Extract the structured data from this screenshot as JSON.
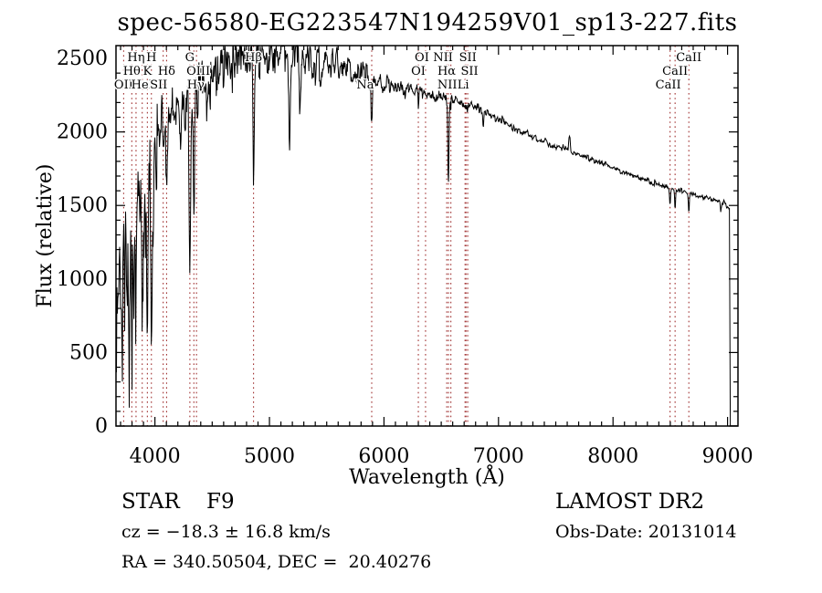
{
  "chart_data": {
    "type": "line",
    "title": "spec-56580-EG223547N194259V01_sp13-227.fits",
    "xlabel": "Wavelength (Å)",
    "ylabel": "Flux (relative)",
    "xlim": [
      3660,
      9091
    ],
    "ylim": [
      0,
      2587
    ],
    "x_ticks": [
      4000,
      5000,
      6000,
      7000,
      8000,
      9000
    ],
    "y_ticks": [
      0,
      500,
      1000,
      1500,
      2000,
      2500
    ],
    "x_minor_step": 100,
    "y_minor_step": 100,
    "grid": false,
    "background": "#ffffff",
    "line_color": "#000000",
    "marker_color": "#a03030",
    "features": [
      {
        "label": "OII",
        "wl": 3727,
        "row": 3,
        "depth": 150,
        "width": 4
      },
      {
        "label": "Hθ",
        "wl": 3798,
        "row": 2,
        "depth": 220,
        "width": 4
      },
      {
        "label": "Hη",
        "wl": 3835,
        "row": 1,
        "depth": 260,
        "width": 4
      },
      {
        "label": "HeI",
        "wl": 3889,
        "row": 3,
        "depth": 420,
        "width": 5
      },
      {
        "label": "K",
        "wl": 3934,
        "row": 2,
        "depth": 1100,
        "width": 6
      },
      {
        "label": "H",
        "wl": 3969,
        "row": 1,
        "depth": 1150,
        "width": 6
      },
      {
        "label": "SII",
        "wl": 4072,
        "row": 3,
        "dx": -5,
        "depth": 110,
        "width": 3
      },
      {
        "label": "Hδ",
        "wl": 4102,
        "row": 2,
        "depth": 480,
        "width": 5
      },
      {
        "label": "G",
        "wl": 4305,
        "row": 1,
        "depth": 1020,
        "width": 6
      },
      {
        "label": "Hγ",
        "wl": 4340,
        "row": 3,
        "dx": 2,
        "depth": 900,
        "width": 5
      },
      {
        "label": "OIII",
        "wl": 4363,
        "row": 2,
        "dx": 2,
        "depth": 130,
        "width": 3
      },
      {
        "label": "Hβ",
        "wl": 4861,
        "row": 1,
        "depth": 780,
        "width": 5
      },
      {
        "label": "Na",
        "wl": 5893,
        "row": 3,
        "dx": -7,
        "depth": 300,
        "width": 5
      },
      {
        "label": "OI",
        "wl": 6300,
        "row": 2,
        "depth": 85,
        "width": 3
      },
      {
        "label": "OI",
        "wl": 6363,
        "row": 1,
        "dx": -4,
        "depth": 55,
        "width": 3
      },
      {
        "label": "NII",
        "wl": 6548,
        "row": 1,
        "dx": -4,
        "depth": 60,
        "width": 2.5
      },
      {
        "label": "Hα",
        "wl": 6563,
        "row": 2,
        "dx": -2,
        "depth": 580,
        "width": 5
      },
      {
        "label": "NII",
        "wl": 6584,
        "row": 3,
        "dx": -4,
        "depth": 60,
        "width": 2.5
      },
      {
        "label": "Li",
        "wl": 6708,
        "row": 3,
        "dx": -2,
        "depth": 45,
        "width": 2.5
      },
      {
        "label": "SII",
        "wl": 6716,
        "row": 1,
        "dx": 2,
        "depth": 55,
        "width": 2.5
      },
      {
        "label": "SII",
        "wl": 6731,
        "row": 2,
        "dx": 2,
        "depth": 55,
        "width": 2.5
      },
      {
        "label": "CaII",
        "wl": 8498,
        "row": 3,
        "dx": -2,
        "depth": 115,
        "width": 4
      },
      {
        "label": "CaII",
        "wl": 8542,
        "row": 2,
        "depth": 145,
        "width": 4
      },
      {
        "label": "CaII",
        "wl": 8662,
        "row": 1,
        "depth": 130,
        "width": 4
      }
    ],
    "extra_features": [
      {
        "wl": 4226,
        "depth": 320,
        "width": 3.5
      },
      {
        "wl": 5175,
        "depth": 540,
        "width": 7
      },
      {
        "wl": 5270,
        "depth": 360,
        "width": 5
      },
      {
        "wl": 6867,
        "depth": 85,
        "width": 4
      },
      {
        "wl": 7620,
        "depth": -120,
        "width": 6
      },
      {
        "wl": 8940,
        "depth": 60,
        "width": 5
      }
    ],
    "continuum": [
      [
        3660,
        820,
        250
      ],
      [
        3700,
        900,
        270
      ],
      [
        3740,
        980,
        260
      ],
      [
        3780,
        1120,
        240
      ],
      [
        3820,
        1250,
        230
      ],
      [
        3860,
        1400,
        210
      ],
      [
        3900,
        1530,
        190
      ],
      [
        3950,
        1620,
        190
      ],
      [
        4000,
        1780,
        170
      ],
      [
        4040,
        1960,
        130
      ],
      [
        4090,
        2060,
        105
      ],
      [
        4150,
        2130,
        95
      ],
      [
        4220,
        2200,
        95
      ],
      [
        4300,
        2240,
        95
      ],
      [
        4380,
        2290,
        100
      ],
      [
        4460,
        2350,
        105
      ],
      [
        4550,
        2400,
        105
      ],
      [
        4650,
        2440,
        105
      ],
      [
        4750,
        2490,
        100
      ],
      [
        4850,
        2530,
        90
      ],
      [
        4950,
        2505,
        85
      ],
      [
        5050,
        2530,
        85
      ],
      [
        5150,
        2555,
        85
      ],
      [
        5250,
        2550,
        80
      ],
      [
        5350,
        2505,
        75
      ],
      [
        5450,
        2470,
        70
      ],
      [
        5550,
        2480,
        65
      ],
      [
        5650,
        2455,
        60
      ],
      [
        5750,
        2425,
        52
      ],
      [
        5850,
        2385,
        45
      ],
      [
        5950,
        2345,
        38
      ],
      [
        6050,
        2315,
        32
      ],
      [
        6150,
        2295,
        28
      ],
      [
        6250,
        2280,
        26
      ],
      [
        6350,
        2265,
        24
      ],
      [
        6450,
        2250,
        22
      ],
      [
        6550,
        2235,
        20
      ],
      [
        6650,
        2210,
        19
      ],
      [
        6750,
        2185,
        18
      ],
      [
        6850,
        2150,
        17
      ],
      [
        6950,
        2110,
        16
      ],
      [
        7050,
        2065,
        15
      ],
      [
        7150,
        2015,
        14
      ],
      [
        7250,
        1985,
        13
      ],
      [
        7350,
        1950,
        13
      ],
      [
        7450,
        1918,
        12
      ],
      [
        7550,
        1888,
        12
      ],
      [
        7650,
        1862,
        11
      ],
      [
        7750,
        1832,
        11
      ],
      [
        7850,
        1802,
        10
      ],
      [
        7950,
        1772,
        10
      ],
      [
        8050,
        1742,
        10
      ],
      [
        8150,
        1712,
        10
      ],
      [
        8250,
        1682,
        10
      ],
      [
        8350,
        1655,
        10
      ],
      [
        8450,
        1632,
        10
      ],
      [
        8550,
        1610,
        10
      ],
      [
        8650,
        1582,
        10
      ],
      [
        8750,
        1562,
        10
      ],
      [
        8850,
        1548,
        10
      ],
      [
        8950,
        1525,
        9
      ],
      [
        9016,
        1490,
        8
      ]
    ],
    "cutoff": {
      "wl": 9016,
      "to_flux": 0,
      "end_wl": 9089
    }
  },
  "annotations": {
    "object_class": "STAR    F9",
    "survey": "LAMOST DR2",
    "cz": "cz = −18.3 ± 16.8 km/s",
    "obs_date": "Obs-Date: 20131014",
    "ra_dec": "RA = 340.50504, DEC =  20.40276"
  }
}
